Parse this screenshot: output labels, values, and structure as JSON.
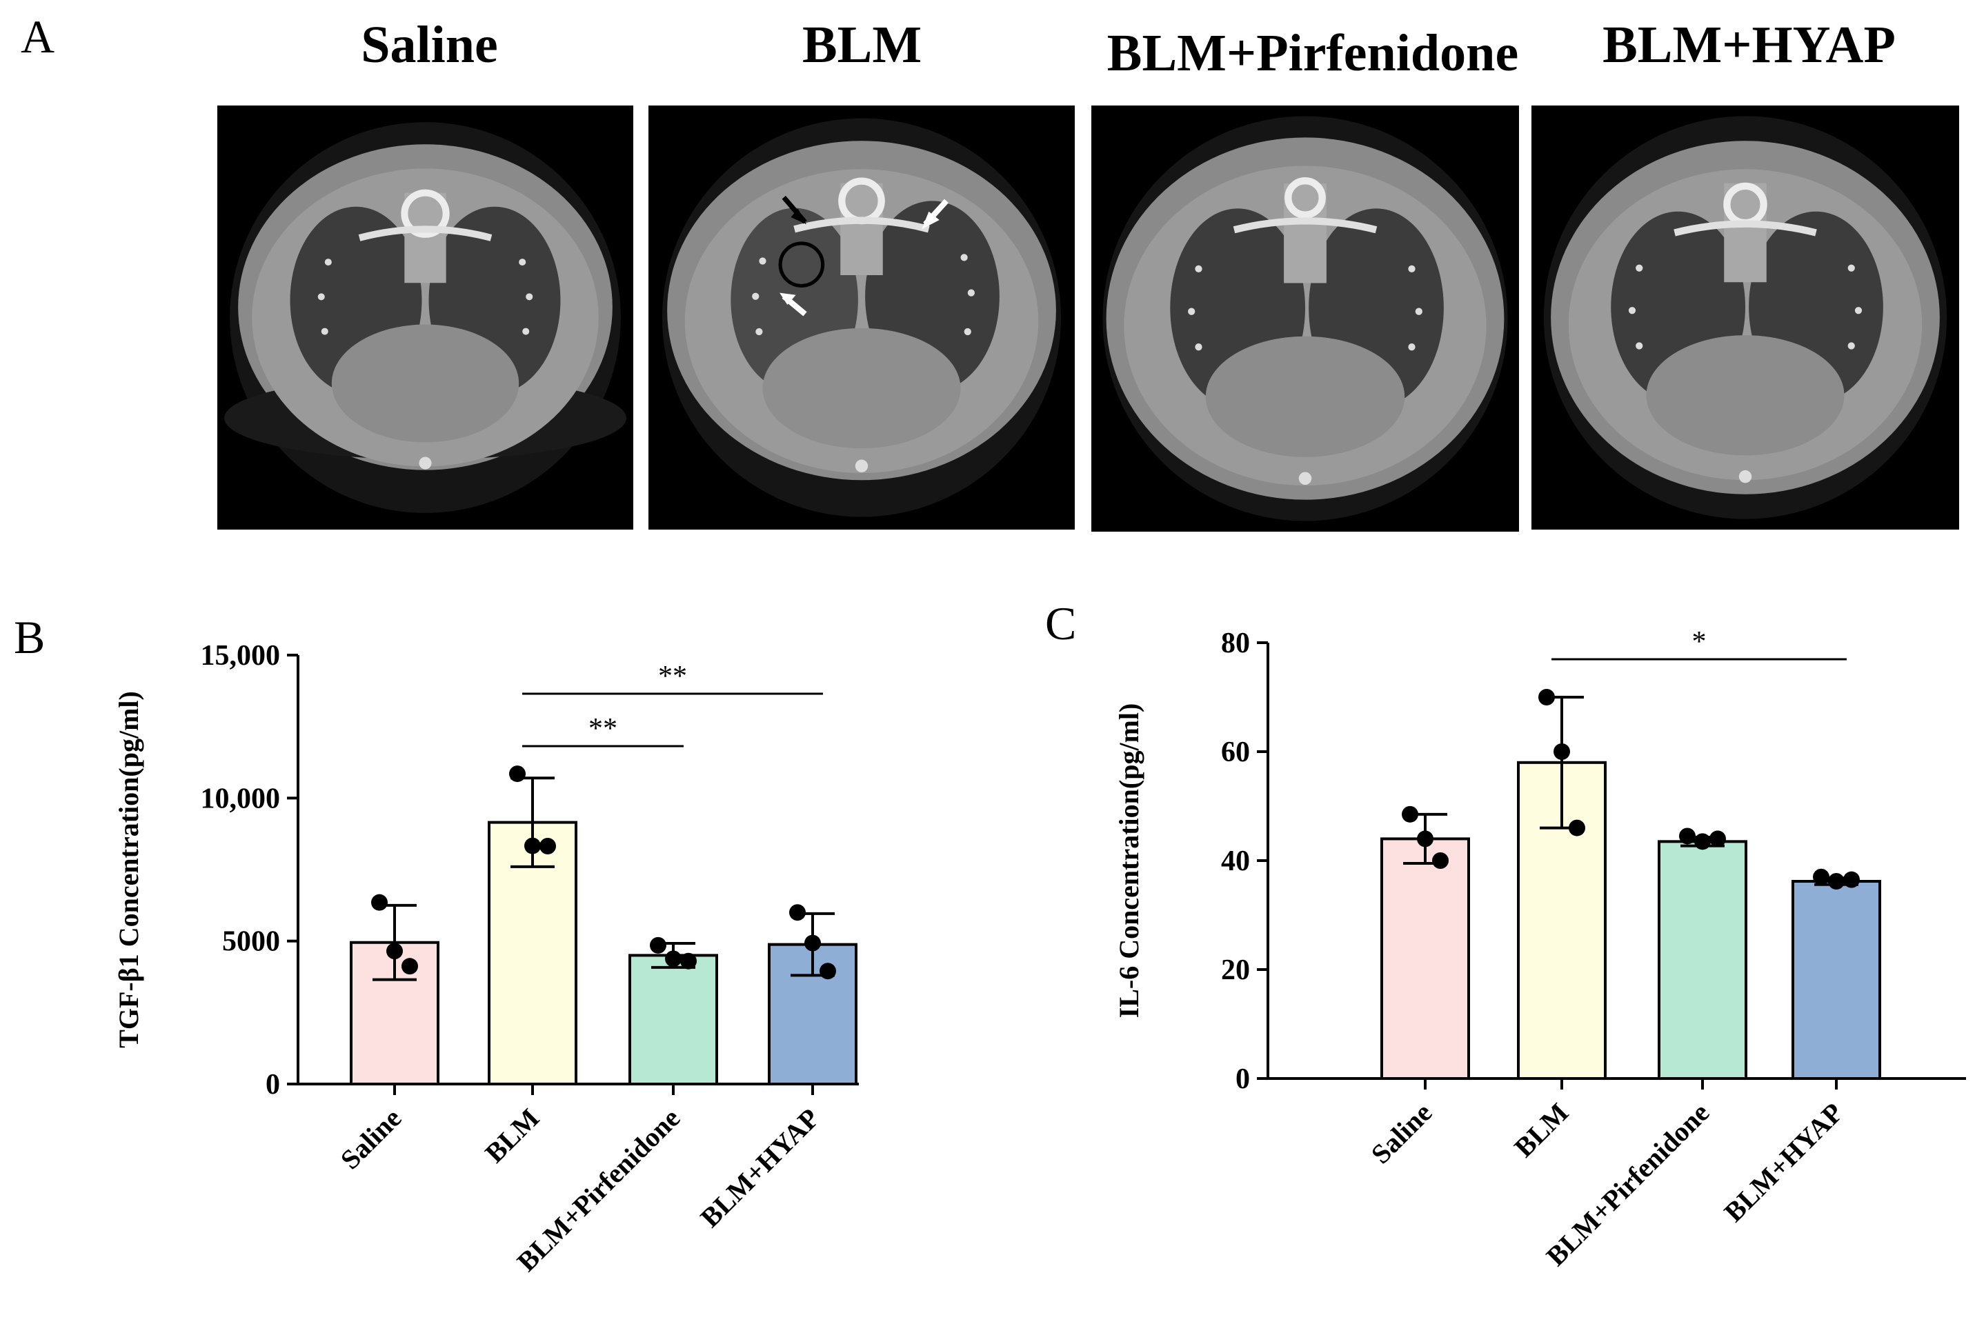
{
  "panel_a": {
    "letter": "A",
    "panels": [
      {
        "title": "Saline",
        "annotations": []
      },
      {
        "title": "BLM",
        "annotations": [
          "black-arrow",
          "white-arrow",
          "white-arrow",
          "circle"
        ]
      },
      {
        "title": "BLM+Pirfenidone",
        "annotations": []
      },
      {
        "title": "BLM+HYAP",
        "annotations": []
      }
    ]
  },
  "panel_b": {
    "letter": "B"
  },
  "panel_c": {
    "letter": "C"
  },
  "chart_data": [
    {
      "type": "bar",
      "title": "",
      "xlabel": "",
      "ylabel": "TGF-β1 Concentration(pg/ml)",
      "categories": [
        "Saline",
        "BLM",
        "BLM+Pirfenidone",
        "BLM+HYAP"
      ],
      "values": [
        4950,
        9150,
        4500,
        4880
      ],
      "error_sd": [
        1300,
        1550,
        420,
        1080
      ],
      "points": [
        [
          6350,
          4650,
          4120
        ],
        [
          10850,
          8330,
          8320
        ],
        [
          4850,
          4380,
          4300
        ],
        [
          6000,
          4930,
          3950
        ]
      ],
      "colors": [
        "#fde0e0",
        "#fefde0",
        "#b6e8d4",
        "#8eaed6"
      ],
      "ylim": [
        0,
        15000
      ],
      "yticks": [
        0,
        5000,
        10000,
        15000
      ],
      "ytick_labels": [
        "0",
        "5000",
        "10,000",
        "15,000"
      ],
      "grid": false,
      "significance": [
        {
          "from": 1,
          "to": 2,
          "label": "**"
        },
        {
          "from": 1,
          "to": 3,
          "label": "**"
        }
      ]
    },
    {
      "type": "bar",
      "title": "",
      "xlabel": "",
      "ylabel": "IL-6 Concentration(pg/ml)",
      "categories": [
        "Saline",
        "BLM",
        "BLM+Pirfenidone",
        "BLM+HYAP"
      ],
      "values": [
        44,
        58,
        43.5,
        36.2
      ],
      "error_sd": [
        4.5,
        12,
        0.8,
        0.6
      ],
      "points": [
        [
          48.5,
          44,
          40
        ],
        [
          70,
          60,
          46
        ],
        [
          44.5,
          43.5,
          44
        ],
        [
          37,
          36.2,
          36.5
        ]
      ],
      "colors": [
        "#fde0e0",
        "#fefde0",
        "#b6e8d4",
        "#8eaed6"
      ],
      "ylim": [
        0,
        80
      ],
      "yticks": [
        0,
        20,
        40,
        60,
        80
      ],
      "ytick_labels": [
        "0",
        "20",
        "40",
        "60",
        "80"
      ],
      "grid": false,
      "significance": [
        {
          "from": 1,
          "to": 3,
          "label": "*"
        }
      ]
    }
  ]
}
